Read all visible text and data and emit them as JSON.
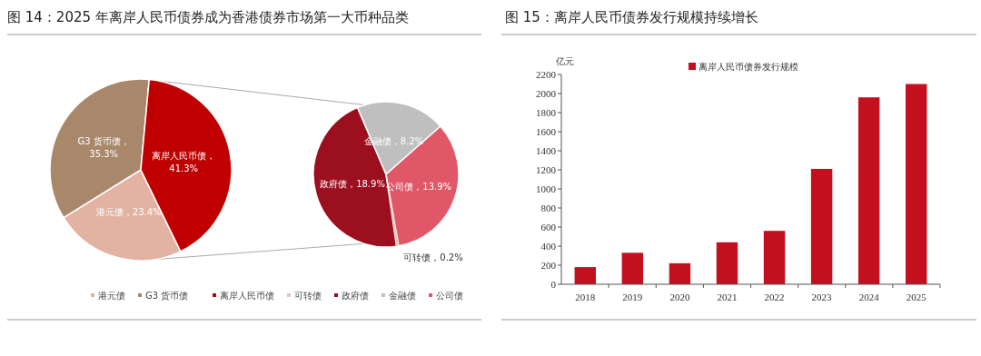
{
  "chart_data": [
    {
      "type": "pie",
      "title": "图 14：2025 年离岸人民币债券成为香港债券市场第一大币种品类",
      "categories": [
        "港元债",
        "G3 货币债",
        "离岸人民币债"
      ],
      "values": [
        23.4,
        35.3,
        41.3
      ],
      "colors": [
        "#e2b3a3",
        "#a9876b",
        "#c00000"
      ],
      "value_labels": [
        "港元债，23.4%",
        "G3 货币债，35.3%",
        "离岸人民币债，41.3%"
      ],
      "legend": "bottom"
    },
    {
      "type": "pie",
      "categories": [
        "可转债",
        "政府债",
        "金融债",
        "公司债"
      ],
      "values": [
        0.2,
        18.9,
        8.2,
        13.9
      ],
      "colors": [
        "#dcc8bd",
        "#9b0f1e",
        "#bfbfbf",
        "#e05868"
      ],
      "value_labels": [
        "可转债，0.2%",
        "政府债，18.9%",
        "金融债，8.2%",
        "公司债，13.9%"
      ],
      "legend": "bottom"
    },
    {
      "type": "bar",
      "title": "图 15：离岸人民币债券发行规模持续增长",
      "ylabel": "亿元",
      "categories": [
        "2018",
        "2019",
        "2020",
        "2021",
        "2022",
        "2023",
        "2024",
        "2025"
      ],
      "series": [
        {
          "name": "离岸人民币债券发行规模",
          "color": "#c3101f",
          "values": [
            180,
            330,
            220,
            440,
            560,
            1210,
            1960,
            2100
          ]
        }
      ],
      "ylim": [
        0,
        2200
      ],
      "yticks": [
        0,
        200,
        400,
        600,
        800,
        1000,
        1200,
        1400,
        1600,
        1800,
        2000,
        2200
      ],
      "legend": "top"
    }
  ]
}
